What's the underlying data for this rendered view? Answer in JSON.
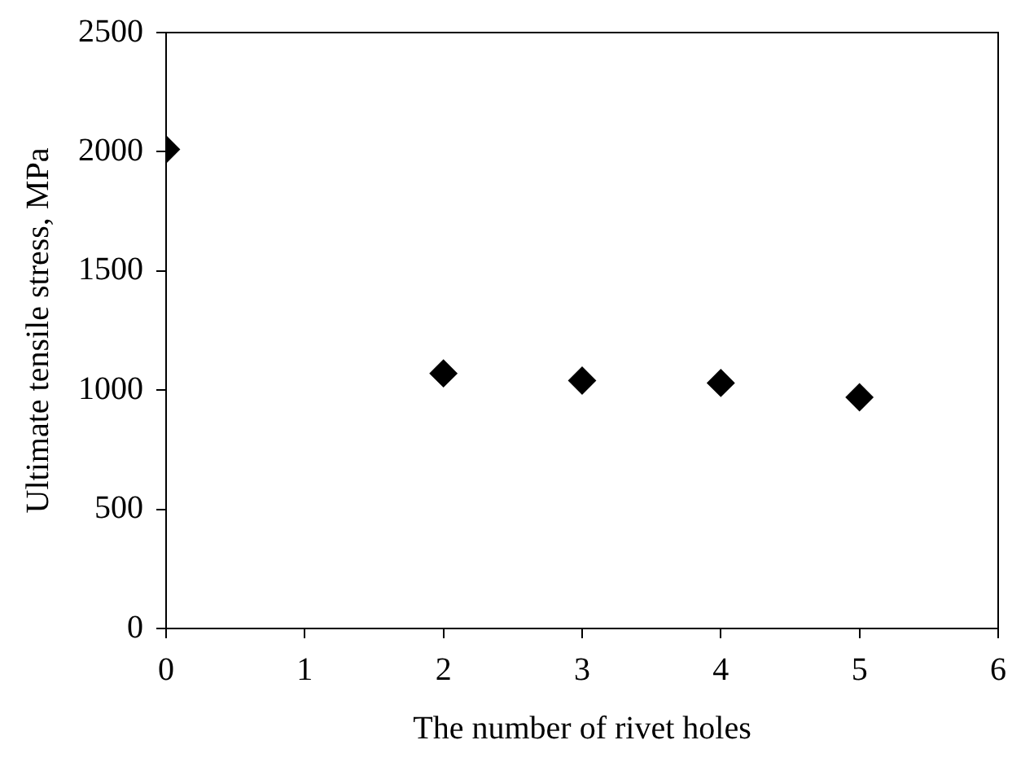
{
  "chart_data": {
    "type": "scatter",
    "xlabel": "The number of rivet holes",
    "ylabel": "Ultimate tensile stress, MPa",
    "x": [
      0,
      2,
      3,
      4,
      5
    ],
    "series": [
      {
        "color": "#000000",
        "values": [
          2010,
          1070,
          1040,
          1030,
          970
        ]
      }
    ],
    "xlim": [
      0,
      6
    ],
    "xticks": [
      0,
      1,
      2,
      3,
      4,
      5,
      6
    ],
    "ylim": [
      0,
      2500
    ],
    "yticks": [
      0,
      500,
      1000,
      1500,
      2000,
      2500
    ],
    "grid": false,
    "legend": false,
    "marker": "diamond"
  }
}
